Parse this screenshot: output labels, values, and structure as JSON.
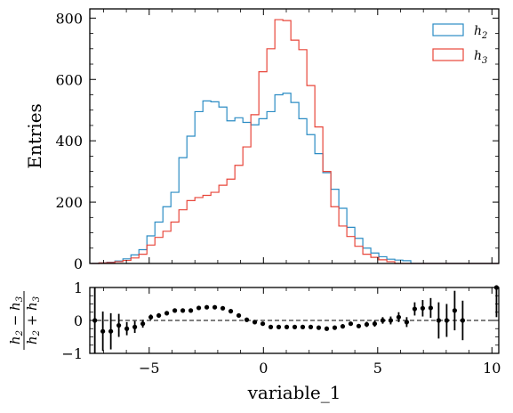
{
  "chart_data": [
    {
      "type": "step-histogram",
      "ylabel": "Entries",
      "xlim": [
        -7.6,
        10.3
      ],
      "ylim": [
        0,
        830
      ],
      "yticks": [
        0,
        200,
        400,
        600,
        800
      ],
      "bin_edges_start": -7.55,
      "bin_width": 0.35,
      "legend": {
        "placement": "top-right"
      },
      "series": [
        {
          "name": "h",
          "name_sub": "2",
          "color": "#2b8cc4",
          "values": [
            0,
            2,
            4,
            8,
            15,
            28,
            45,
            90,
            135,
            185,
            232,
            345,
            415,
            495,
            530,
            527,
            510,
            465,
            475,
            460,
            452,
            472,
            495,
            550,
            555,
            525,
            472,
            420,
            358,
            296,
            242,
            180,
            118,
            82,
            50,
            34,
            22,
            14,
            11,
            9,
            0,
            0,
            0,
            0,
            0,
            0,
            0,
            0,
            0,
            0,
            0
          ]
        },
        {
          "name": "h",
          "name_sub": "3",
          "color": "#e8463a",
          "values": [
            0,
            2,
            3,
            6,
            10,
            18,
            30,
            60,
            85,
            105,
            135,
            175,
            205,
            215,
            222,
            232,
            255,
            275,
            320,
            380,
            485,
            625,
            700,
            795,
            792,
            728,
            697,
            580,
            445,
            300,
            185,
            122,
            88,
            56,
            30,
            20,
            12,
            6,
            0,
            0,
            0,
            0,
            0,
            0,
            0,
            0,
            0,
            0,
            0,
            0,
            0
          ]
        }
      ]
    },
    {
      "type": "scatter-errorbar",
      "xlabel": "variable_1",
      "ylabel_num": "h",
      "ylabel_num_sub_a": "2",
      "ylabel_num_op": " − ",
      "ylabel_num_b": "h",
      "ylabel_num_sub_b": "3",
      "ylabel_den": "h",
      "ylabel_den_sub_a": "2",
      "ylabel_den_op": " + ",
      "ylabel_den_b": "h",
      "ylabel_den_sub_b": "3",
      "xlim": [
        -7.6,
        10.3
      ],
      "ylim": [
        -1,
        1
      ],
      "yticks": [
        -1,
        0,
        1
      ],
      "xticks": [
        -5,
        0,
        5,
        10
      ],
      "reference_line": 0,
      "x": [
        -7.38,
        -7.03,
        -6.68,
        -6.33,
        -5.98,
        -5.63,
        -5.28,
        -4.93,
        -4.58,
        -4.23,
        -3.88,
        -3.53,
        -3.18,
        -2.83,
        -2.48,
        -2.13,
        -1.78,
        -1.43,
        -1.08,
        -0.73,
        -0.38,
        -0.03,
        0.32,
        0.67,
        1.02,
        1.37,
        1.72,
        2.07,
        2.42,
        2.77,
        3.12,
        3.47,
        3.82,
        4.17,
        4.52,
        4.87,
        5.22,
        5.57,
        5.92,
        6.27,
        6.62,
        6.97,
        7.32,
        7.67,
        8.02,
        8.37,
        8.72,
        10.2
      ],
      "y": [
        0.0,
        -0.33,
        -0.33,
        -0.15,
        -0.25,
        -0.2,
        -0.1,
        0.1,
        0.15,
        0.22,
        0.3,
        0.3,
        0.3,
        0.38,
        0.4,
        0.4,
        0.37,
        0.28,
        0.15,
        0.02,
        -0.05,
        -0.1,
        -0.2,
        -0.2,
        -0.2,
        -0.2,
        -0.2,
        -0.2,
        -0.22,
        -0.25,
        -0.22,
        -0.18,
        -0.1,
        -0.17,
        -0.12,
        -0.1,
        0.0,
        0.0,
        0.1,
        -0.05,
        0.35,
        0.37,
        0.38,
        0.0,
        0.0,
        0.3,
        0.0,
        1.0
      ],
      "yerr": [
        1.0,
        0.6,
        0.55,
        0.35,
        0.2,
        0.18,
        0.12,
        0.08,
        0.07,
        0.06,
        0.05,
        0.05,
        0.04,
        0.04,
        0.04,
        0.04,
        0.04,
        0.04,
        0.04,
        0.04,
        0.04,
        0.04,
        0.03,
        0.03,
        0.03,
        0.03,
        0.03,
        0.03,
        0.03,
        0.04,
        0.04,
        0.05,
        0.05,
        0.06,
        0.08,
        0.09,
        0.1,
        0.12,
        0.15,
        0.15,
        0.2,
        0.25,
        0.3,
        0.55,
        0.5,
        0.6,
        0.6,
        0.9
      ]
    }
  ]
}
